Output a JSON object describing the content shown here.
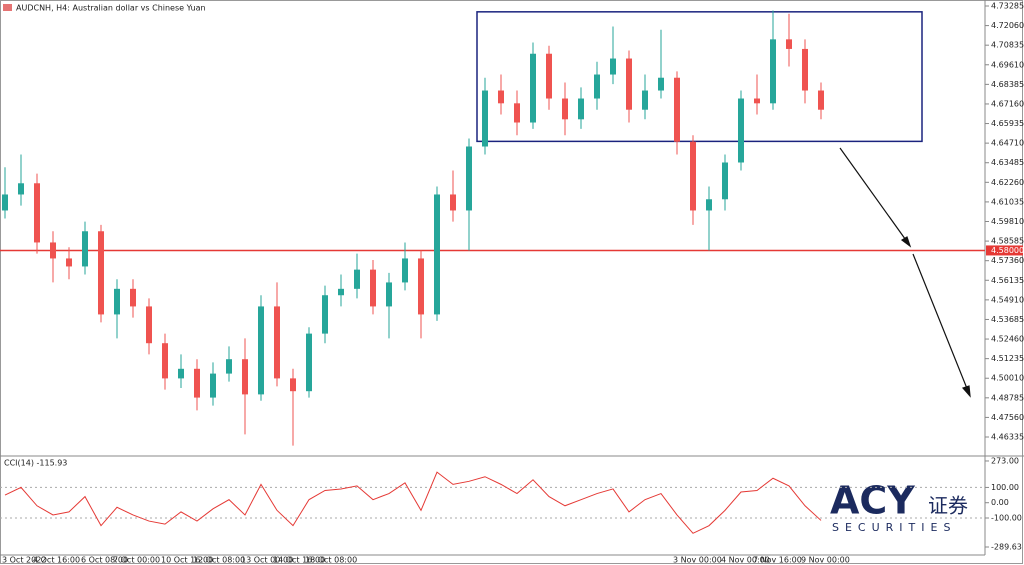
{
  "chart_data": {
    "type": "candlestick",
    "title": "AUDCNH, H4: Australian dollar vs Chinese Yuan",
    "up_color": "#26a69a",
    "down_color": "#ef5350",
    "categories": [
      "3 Oct 2022",
      null,
      "4 Oct 16:00",
      null,
      null,
      "6 Oct 08:00",
      null,
      "7 Oct 00:00",
      null,
      null,
      "10 Oct 16:00",
      null,
      "12 Oct 08:00",
      null,
      null,
      "13 Oct 00:00",
      null,
      "14 Oct 16:00",
      null,
      "18 Oct 08:00",
      null,
      null,
      null,
      null,
      null,
      null,
      null,
      null,
      null,
      null,
      null,
      null,
      null,
      null,
      null,
      null,
      null,
      null,
      null,
      null,
      null,
      null,
      "3 Nov 00:00",
      null,
      null,
      "4 Nov 00:00",
      null,
      "7 Nov 16:00",
      null,
      null,
      "9 Nov 00:00",
      null
    ],
    "open": [
      4.605,
      4.615,
      4.622,
      4.585,
      4.575,
      4.57,
      4.592,
      4.54,
      4.556,
      4.545,
      4.522,
      4.5,
      4.506,
      4.488,
      4.503,
      4.512,
      4.49,
      4.545,
      4.5,
      4.492,
      4.528,
      4.552,
      4.556,
      4.568,
      4.545,
      4.56,
      4.575,
      4.54,
      4.615,
      4.605,
      4.645,
      4.68,
      4.672,
      4.66,
      4.703,
      4.675,
      4.662,
      4.675,
      4.69,
      4.7,
      4.668,
      4.68,
      4.688,
      4.648,
      4.605,
      4.612,
      4.635,
      4.675,
      4.672,
      4.712,
      4.706,
      4.68
    ],
    "high": [
      4.632,
      4.64,
      4.628,
      4.592,
      4.582,
      4.598,
      4.596,
      4.562,
      4.562,
      4.55,
      4.528,
      4.515,
      4.512,
      4.51,
      4.52,
      4.525,
      4.552,
      4.56,
      4.506,
      4.532,
      4.558,
      4.565,
      4.578,
      4.574,
      4.566,
      4.585,
      4.58,
      4.62,
      4.63,
      4.65,
      4.688,
      4.69,
      4.68,
      4.71,
      4.708,
      4.685,
      4.682,
      4.698,
      4.72,
      4.705,
      4.69,
      4.718,
      4.692,
      4.652,
      4.62,
      4.64,
      4.68,
      4.69,
      4.73,
      4.728,
      4.712,
      4.685
    ],
    "low": [
      4.6,
      4.608,
      4.578,
      4.56,
      4.562,
      4.565,
      4.535,
      4.525,
      4.538,
      4.515,
      4.493,
      4.494,
      4.48,
      4.483,
      4.498,
      4.465,
      4.486,
      4.495,
      4.458,
      4.488,
      4.522,
      4.545,
      4.55,
      4.54,
      4.525,
      4.555,
      4.525,
      4.536,
      4.598,
      4.58,
      4.64,
      4.665,
      4.652,
      4.656,
      4.668,
      4.652,
      4.656,
      4.668,
      4.684,
      4.66,
      4.662,
      4.675,
      4.64,
      4.596,
      4.58,
      4.605,
      4.63,
      4.665,
      4.668,
      4.695,
      4.672,
      4.662
    ],
    "close": [
      4.615,
      4.622,
      4.585,
      4.575,
      4.57,
      4.592,
      4.54,
      4.556,
      4.545,
      4.522,
      4.5,
      4.506,
      4.488,
      4.503,
      4.512,
      4.49,
      4.545,
      4.5,
      4.492,
      4.528,
      4.552,
      4.556,
      4.568,
      4.545,
      4.56,
      4.575,
      4.54,
      4.615,
      4.605,
      4.645,
      4.68,
      4.672,
      4.66,
      4.703,
      4.675,
      4.662,
      4.675,
      4.69,
      4.7,
      4.668,
      4.68,
      4.688,
      4.648,
      4.605,
      4.612,
      4.635,
      4.675,
      4.672,
      4.712,
      4.706,
      4.68,
      4.668
    ],
    "ylim": [
      4.4521,
      4.7366
    ],
    "yticks": [
      {
        "value": 4.73285,
        "label": "4.73285"
      },
      {
        "value": 4.7206,
        "label": "4.72060"
      },
      {
        "value": 4.70835,
        "label": "4.70835"
      },
      {
        "value": 4.6961,
        "label": "4.69610"
      },
      {
        "value": 4.68385,
        "label": "4.68385"
      },
      {
        "value": 4.6716,
        "label": "4.67160"
      },
      {
        "value": 4.65935,
        "label": "4.65935"
      },
      {
        "value": 4.6471,
        "label": "4.64710"
      },
      {
        "value": 4.63485,
        "label": "4.63485"
      },
      {
        "value": 4.6226,
        "label": "4.62260"
      },
      {
        "value": 4.61035,
        "label": "4.61035"
      },
      {
        "value": 4.5981,
        "label": "4.59810"
      },
      {
        "value": 4.58585,
        "label": "4.58585"
      },
      {
        "value": 4.5736,
        "label": "4.57360"
      },
      {
        "value": 4.56135,
        "label": "4.56135"
      },
      {
        "value": 4.5491,
        "label": "4.54910"
      },
      {
        "value": 4.53685,
        "label": "4.53685"
      },
      {
        "value": 4.5246,
        "label": "4.52460"
      },
      {
        "value": 4.51235,
        "label": "4.51235"
      },
      {
        "value": 4.5001,
        "label": "4.50010"
      },
      {
        "value": 4.48785,
        "label": "4.48785"
      },
      {
        "value": 4.4756,
        "label": "4.47560"
      },
      {
        "value": 4.46335,
        "label": "4.46335"
      }
    ],
    "hline": {
      "value": 4.58,
      "label": "4.58000",
      "color": "#e53935"
    },
    "box": {
      "ylim": [
        4.6482,
        4.7292
      ],
      "color": "#1a237e"
    },
    "indicator": {
      "title": "CCI(14) -115.93",
      "color": "#e53935",
      "values": [
        50,
        100,
        -20,
        -80,
        -60,
        40,
        -150,
        -30,
        -80,
        -120,
        -140,
        -60,
        -120,
        -40,
        20,
        -80,
        120,
        -50,
        -150,
        20,
        80,
        90,
        110,
        20,
        60,
        130,
        -50,
        200,
        120,
        140,
        170,
        120,
        60,
        150,
        40,
        -20,
        20,
        60,
        90,
        -60,
        20,
        60,
        -80,
        -200,
        -150,
        -50,
        70,
        80,
        160,
        110,
        -20,
        -115.93
      ],
      "ylim": [
        -342,
        299
      ],
      "yticks": [
        {
          "value": 273,
          "label": "273.00"
        },
        {
          "value": 100,
          "label": "100.00"
        },
        {
          "value": 0,
          "label": "0.00"
        },
        {
          "value": -100,
          "label": "-100.00"
        },
        {
          "value": -289.63,
          "label": "-289.63"
        }
      ],
      "levels": [
        100,
        -100
      ]
    },
    "logo": {
      "brand": "ACY",
      "cn": "证券",
      "sub": "SECURITIES"
    }
  }
}
